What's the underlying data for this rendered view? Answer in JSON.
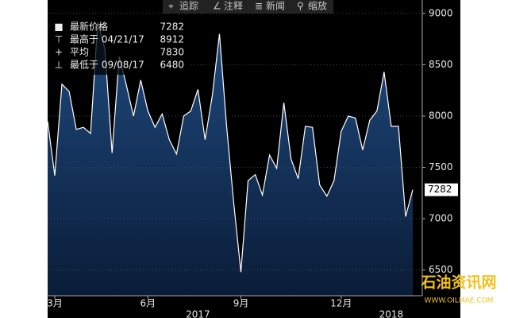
{
  "toolbar": [
    "追踪",
    "注释",
    "新闻",
    "缩放"
  ],
  "watermark": [
    "石油资讯网",
    "WWW.OILMAE.COM"
  ],
  "chart_data": {
    "type": "area",
    "categories": [
      null,
      "3月",
      null,
      null,
      null,
      null,
      null,
      null,
      null,
      null,
      null,
      null,
      null,
      null,
      "6月",
      null,
      null,
      null,
      null,
      null,
      null,
      null,
      null,
      null,
      null,
      null,
      null,
      "9月",
      null,
      null,
      null,
      null,
      null,
      null,
      null,
      null,
      null,
      null,
      null,
      null,
      null,
      "12月",
      null,
      null,
      null,
      null,
      null,
      null,
      null,
      null,
      null,
      null
    ],
    "year_labels": [
      null,
      null,
      null,
      null,
      null,
      null,
      null,
      null,
      null,
      null,
      null,
      null,
      null,
      null,
      null,
      null,
      null,
      null,
      null,
      null,
      null,
      "2017",
      null,
      null,
      null,
      null,
      null,
      null,
      null,
      null,
      null,
      null,
      null,
      null,
      null,
      null,
      null,
      null,
      null,
      null,
      null,
      null,
      null,
      null,
      null,
      null,
      null,
      null,
      "2018",
      null,
      null,
      null
    ],
    "values": [
      7950,
      7420,
      8310,
      8240,
      7870,
      7890,
      7830,
      8912,
      8650,
      7640,
      8580,
      8300,
      8000,
      8350,
      8050,
      7890,
      8020,
      7770,
      7630,
      8000,
      8050,
      8260,
      7770,
      8200,
      8800,
      7900,
      7150,
      6480,
      7370,
      7430,
      7230,
      7620,
      7490,
      8130,
      7580,
      7390,
      7900,
      7890,
      7330,
      7220,
      7370,
      7850,
      8000,
      7980,
      7670,
      7960,
      8050,
      8430,
      7900,
      7900,
      7020,
      7282
    ],
    "color": "#ffffff",
    "ylim": [
      6250,
      9130
    ],
    "yticks": [
      6500,
      7000,
      7500,
      8000,
      8500,
      9000
    ],
    "grid": true,
    "legend": [
      {
        "name": "最新价格",
        "value": 7282
      },
      {
        "name": "最高于 04/21/17",
        "value": 8912
      },
      {
        "name": "平均",
        "value": 7830
      },
      {
        "name": "最低于 09/08/17",
        "value": 6480
      }
    ]
  }
}
